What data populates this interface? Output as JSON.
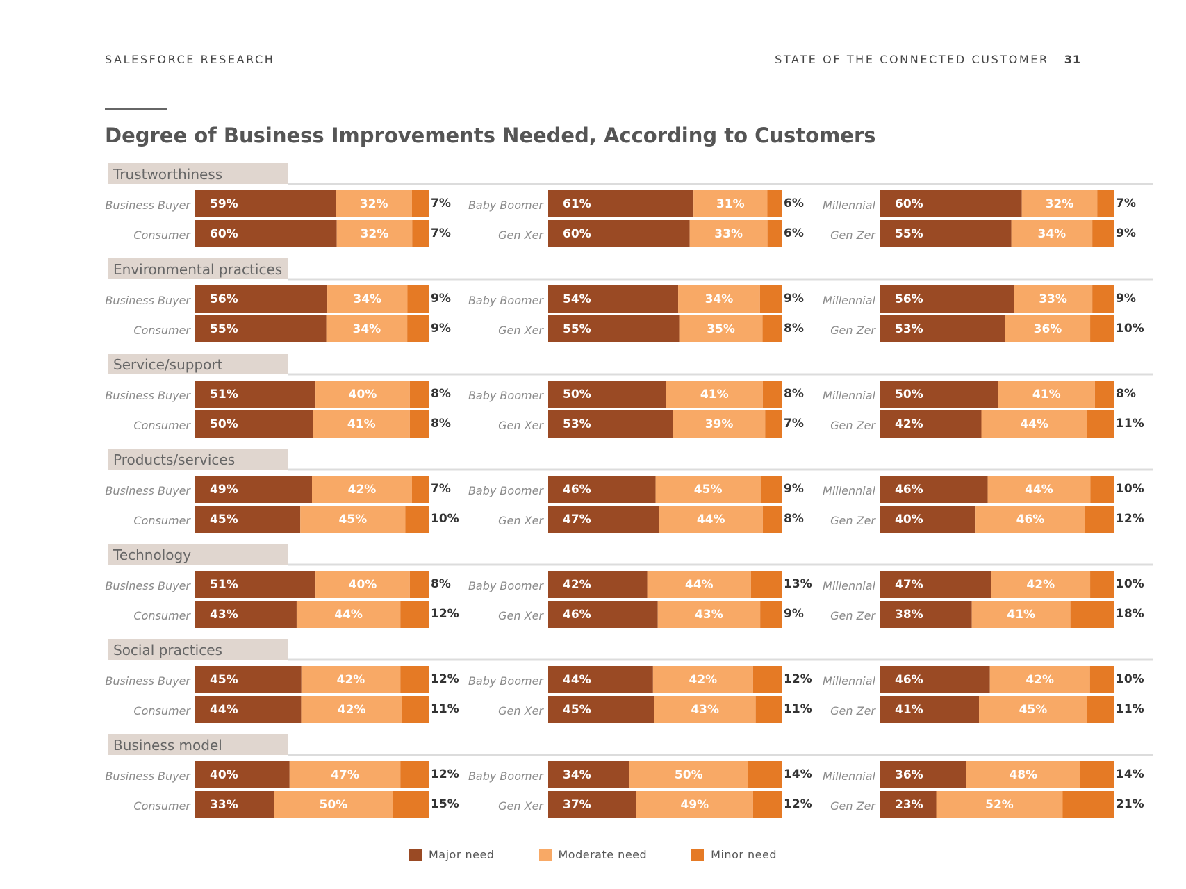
{
  "header": {
    "left": "SALESFORCE RESEARCH",
    "right": "STATE OF THE CONNECTED CUSTOMER",
    "page": "31"
  },
  "title": "Degree of Business Improvements Needed, According to Customers",
  "legend": [
    {
      "label": "Major need",
      "color": "#9a4a24"
    },
    {
      "label": "Moderate need",
      "color": "#f8a966"
    },
    {
      "label": "Minor need",
      "color": "#e57a25"
    }
  ],
  "chart_data": {
    "type": "bar",
    "stacked": true,
    "orientation": "horizontal",
    "title": "Degree of Business Improvements Needed, According to Customers",
    "segments": [
      "Major need",
      "Moderate need",
      "Minor need"
    ],
    "colors": {
      "major": "#9a4a24",
      "moderate": "#f8a966",
      "minor": "#e57a25",
      "panel": "#e0d6cf"
    },
    "groups": [
      {
        "category": "Trustworthiness",
        "rows": [
          [
            {
              "label": "Business Buyer",
              "values": [
                59,
                32,
                7
              ]
            },
            {
              "label": "Baby Boomer",
              "values": [
                61,
                31,
                6
              ]
            },
            {
              "label": "Millennial",
              "values": [
                60,
                32,
                7
              ]
            }
          ],
          [
            {
              "label": "Consumer",
              "values": [
                60,
                32,
                7
              ]
            },
            {
              "label": "Gen Xer",
              "values": [
                60,
                33,
                6
              ]
            },
            {
              "label": "Gen Zer",
              "values": [
                55,
                34,
                9
              ]
            }
          ]
        ]
      },
      {
        "category": "Environmental practices",
        "rows": [
          [
            {
              "label": "Business Buyer",
              "values": [
                56,
                34,
                9
              ]
            },
            {
              "label": "Baby Boomer",
              "values": [
                54,
                34,
                9
              ]
            },
            {
              "label": "Millennial",
              "values": [
                56,
                33,
                9
              ]
            }
          ],
          [
            {
              "label": "Consumer",
              "values": [
                55,
                34,
                9
              ]
            },
            {
              "label": "Gen Xer",
              "values": [
                55,
                35,
                8
              ]
            },
            {
              "label": "Gen Zer",
              "values": [
                53,
                36,
                10
              ]
            }
          ]
        ]
      },
      {
        "category": "Service/support",
        "rows": [
          [
            {
              "label": "Business Buyer",
              "values": [
                51,
                40,
                8
              ]
            },
            {
              "label": "Baby Boomer",
              "values": [
                50,
                41,
                8
              ]
            },
            {
              "label": "Millennial",
              "values": [
                50,
                41,
                8
              ]
            }
          ],
          [
            {
              "label": "Consumer",
              "values": [
                50,
                41,
                8
              ]
            },
            {
              "label": "Gen Xer",
              "values": [
                53,
                39,
                7
              ]
            },
            {
              "label": "Gen Zer",
              "values": [
                42,
                44,
                11
              ]
            }
          ]
        ]
      },
      {
        "category": "Products/services",
        "rows": [
          [
            {
              "label": "Business Buyer",
              "values": [
                49,
                42,
                7
              ]
            },
            {
              "label": "Baby Boomer",
              "values": [
                46,
                45,
                9
              ]
            },
            {
              "label": "Millennial",
              "values": [
                46,
                44,
                10
              ]
            }
          ],
          [
            {
              "label": "Consumer",
              "values": [
                45,
                45,
                10
              ]
            },
            {
              "label": "Gen Xer",
              "values": [
                47,
                44,
                8
              ]
            },
            {
              "label": "Gen Zer",
              "values": [
                40,
                46,
                12
              ]
            }
          ]
        ]
      },
      {
        "category": "Technology",
        "rows": [
          [
            {
              "label": "Business Buyer",
              "values": [
                51,
                40,
                8
              ]
            },
            {
              "label": "Baby Boomer",
              "values": [
                42,
                44,
                13
              ]
            },
            {
              "label": "Millennial",
              "values": [
                47,
                42,
                10
              ]
            }
          ],
          [
            {
              "label": "Consumer",
              "values": [
                43,
                44,
                12
              ]
            },
            {
              "label": "Gen Xer",
              "values": [
                46,
                43,
                9
              ]
            },
            {
              "label": "Gen Zer",
              "values": [
                38,
                41,
                18
              ]
            }
          ]
        ]
      },
      {
        "category": "Social practices",
        "rows": [
          [
            {
              "label": "Business Buyer",
              "values": [
                45,
                42,
                12
              ]
            },
            {
              "label": "Baby Boomer",
              "values": [
                44,
                42,
                12
              ]
            },
            {
              "label": "Millennial",
              "values": [
                46,
                42,
                10
              ]
            }
          ],
          [
            {
              "label": "Consumer",
              "values": [
                44,
                42,
                11
              ]
            },
            {
              "label": "Gen Xer",
              "values": [
                45,
                43,
                11
              ]
            },
            {
              "label": "Gen Zer",
              "values": [
                41,
                45,
                11
              ]
            }
          ]
        ]
      },
      {
        "category": "Business model",
        "rows": [
          [
            {
              "label": "Business Buyer",
              "values": [
                40,
                47,
                12
              ]
            },
            {
              "label": "Baby Boomer",
              "values": [
                34,
                50,
                14
              ]
            },
            {
              "label": "Millennial",
              "values": [
                36,
                48,
                14
              ]
            }
          ],
          [
            {
              "label": "Consumer",
              "values": [
                33,
                50,
                15
              ]
            },
            {
              "label": "Gen Xer",
              "values": [
                37,
                49,
                12
              ]
            },
            {
              "label": "Gen Zer",
              "values": [
                23,
                52,
                21
              ]
            }
          ]
        ]
      }
    ]
  }
}
